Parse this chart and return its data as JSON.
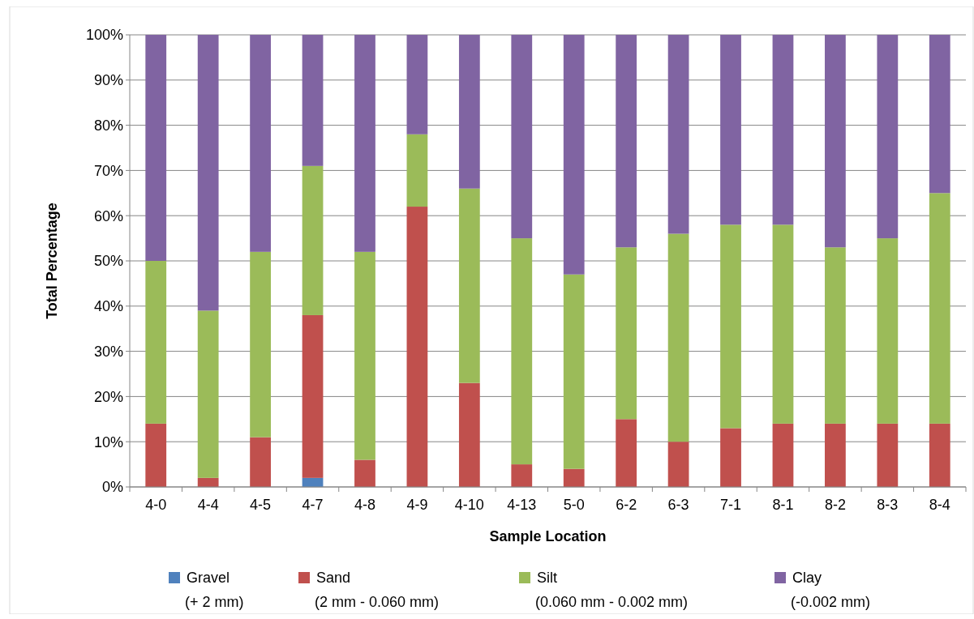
{
  "chart_data": {
    "type": "bar",
    "stacked": true,
    "xlabel": "Sample Location",
    "ylabel": "Total Percentage",
    "categories": [
      "4-0",
      "4-4",
      "4-5",
      "4-7",
      "4-8",
      "4-9",
      "4-10",
      "4-13",
      "5-0",
      "6-2",
      "6-3",
      "7-1",
      "8-1",
      "8-2",
      "8-3",
      "8-4"
    ],
    "series": [
      {
        "name": "Gravel\n(+ 2 mm)",
        "color": "#4f81bd",
        "values": [
          0,
          0,
          0,
          2,
          0,
          0,
          0,
          0,
          0,
          0,
          0,
          0,
          0,
          0,
          0,
          0
        ]
      },
      {
        "name": "Sand\n(2 mm - 0.060 mm)",
        "color": "#c0504d",
        "values": [
          14,
          2,
          11,
          36,
          6,
          62,
          23,
          5,
          4,
          15,
          10,
          13,
          14,
          14,
          14,
          14
        ]
      },
      {
        "name": "Silt\n(0.060 mm - 0.002 mm)",
        "color": "#9bbb59",
        "values": [
          36,
          37,
          41,
          33,
          46,
          16,
          43,
          50,
          43,
          38,
          46,
          45,
          44,
          39,
          41,
          51
        ]
      },
      {
        "name": "Clay\n(-0.002 mm)",
        "color": "#8064a2",
        "values": [
          50,
          61,
          48,
          29,
          48,
          22,
          34,
          45,
          53,
          47,
          44,
          42,
          42,
          47,
          45,
          35
        ]
      }
    ],
    "ylim": [
      0,
      100
    ],
    "yticks": [
      {
        "value": 0,
        "label": "0%"
      },
      {
        "value": 10,
        "label": "10%"
      },
      {
        "value": 20,
        "label": "20%"
      },
      {
        "value": 30,
        "label": "30%"
      },
      {
        "value": 40,
        "label": "40%"
      },
      {
        "value": 50,
        "label": "50%"
      },
      {
        "value": 60,
        "label": "60%"
      },
      {
        "value": 70,
        "label": "70%"
      },
      {
        "value": 80,
        "label": "80%"
      },
      {
        "value": 90,
        "label": "90%"
      },
      {
        "value": 100,
        "label": "100%"
      }
    ],
    "grid": "y",
    "legend": "bottom"
  }
}
